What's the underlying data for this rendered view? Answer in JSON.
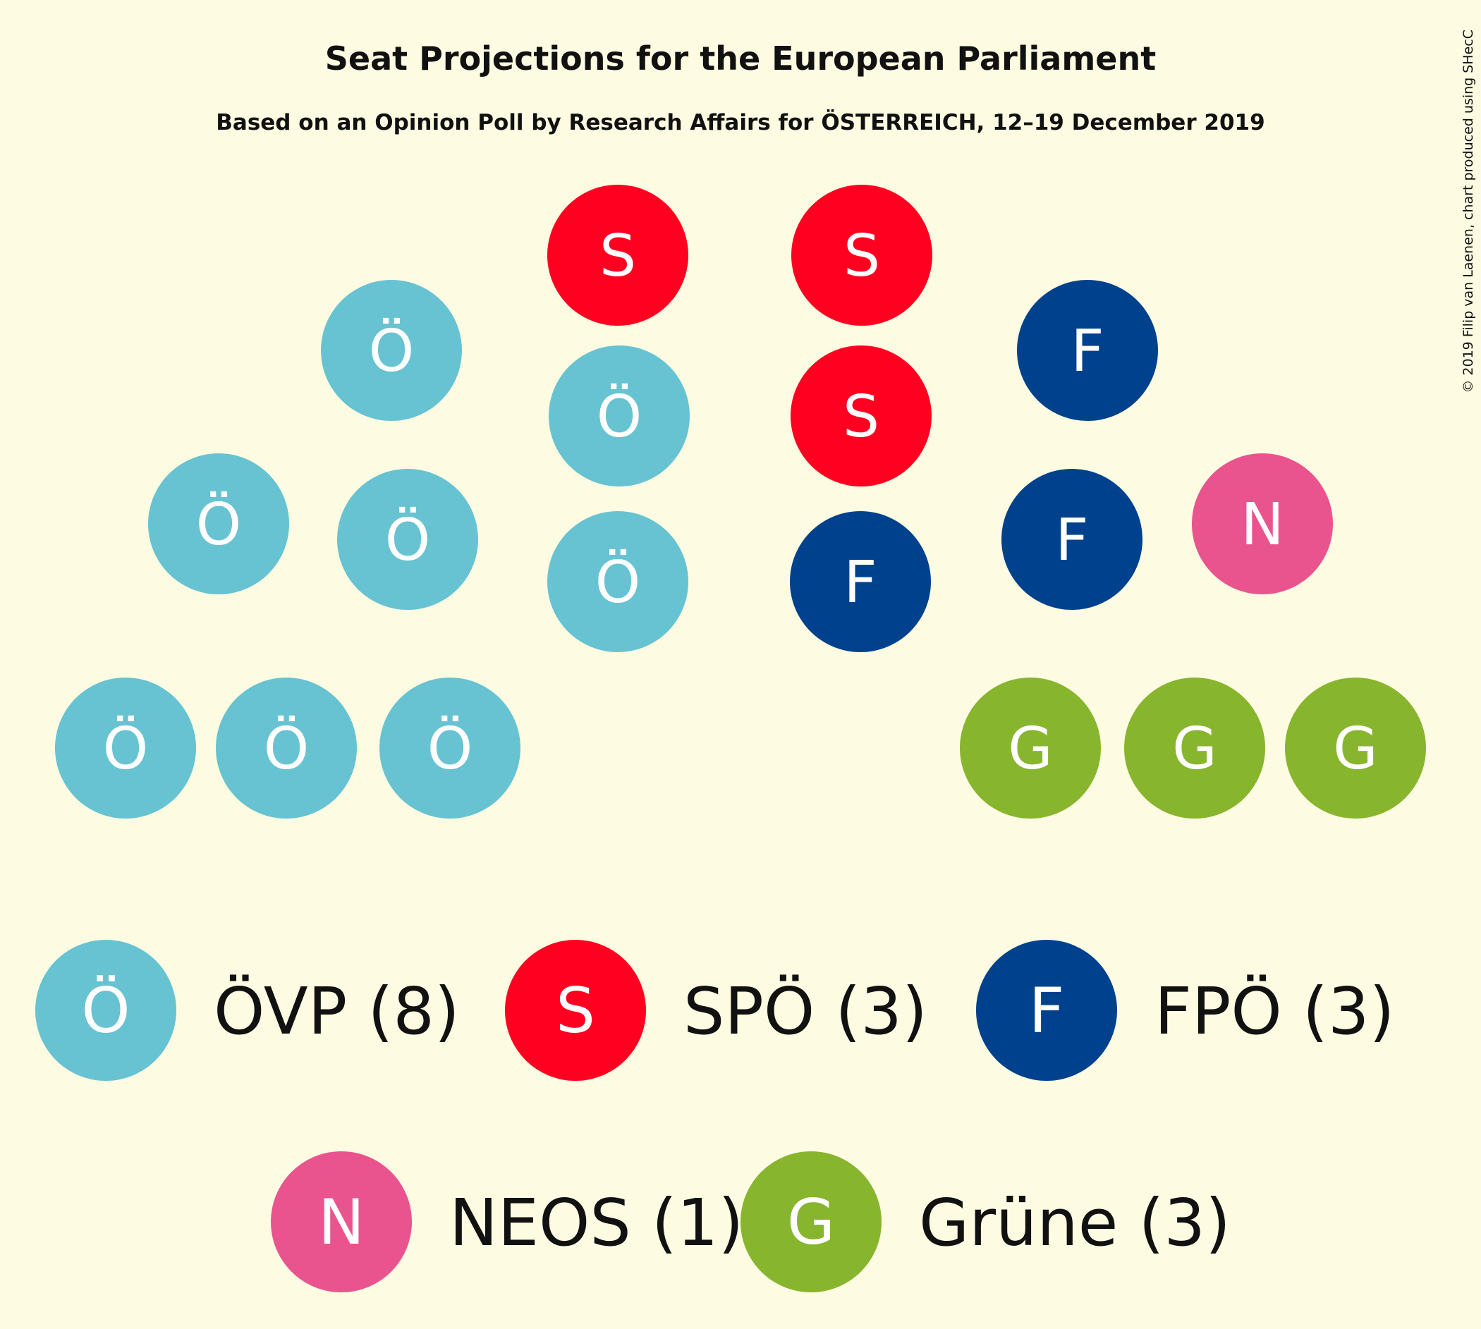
{
  "title": "Seat Projections for the European Parliament",
  "subtitle": "Based on an Opinion Poll by Research Affairs for ÖSTERREICH, 12–19 December 2019",
  "credit": "© 2019 Filip van Laenen, chart produced using SHecC",
  "chart_data": {
    "type": "parliament",
    "title": "Seat Projections for the European Parliament",
    "subtitle": "Based on an Opinion Poll by Research Affairs for ÖSTERREICH, 12–19 December 2019",
    "total_seats": 18,
    "parties": [
      {
        "name": "ÖVP",
        "letter": "Ö",
        "seats": 8,
        "color": "#67c3d1",
        "label": "ÖVP (8)"
      },
      {
        "name": "SPÖ",
        "letter": "S",
        "seats": 3,
        "color": "#ff0020",
        "label": "SPÖ (3)"
      },
      {
        "name": "FPÖ",
        "letter": "F",
        "seats": 3,
        "color": "#00418d",
        "label": "FPÖ (3)"
      },
      {
        "name": "NEOS",
        "letter": "N",
        "seats": 1,
        "color": "#e9548e",
        "label": "NEOS (1)"
      },
      {
        "name": "Grüne",
        "letter": "G",
        "seats": 3,
        "color": "#88b52e",
        "label": "Grüne (3)"
      }
    ],
    "seat_order": [
      "ÖVP",
      "ÖVP",
      "ÖVP",
      "ÖVP",
      "ÖVP",
      "ÖVP",
      "ÖVP",
      "ÖVP",
      "SPÖ",
      "SPÖ",
      "SPÖ",
      "FPÖ",
      "FPÖ",
      "FPÖ",
      "NEOS",
      "Grüne",
      "Grüne",
      "Grüne"
    ]
  }
}
